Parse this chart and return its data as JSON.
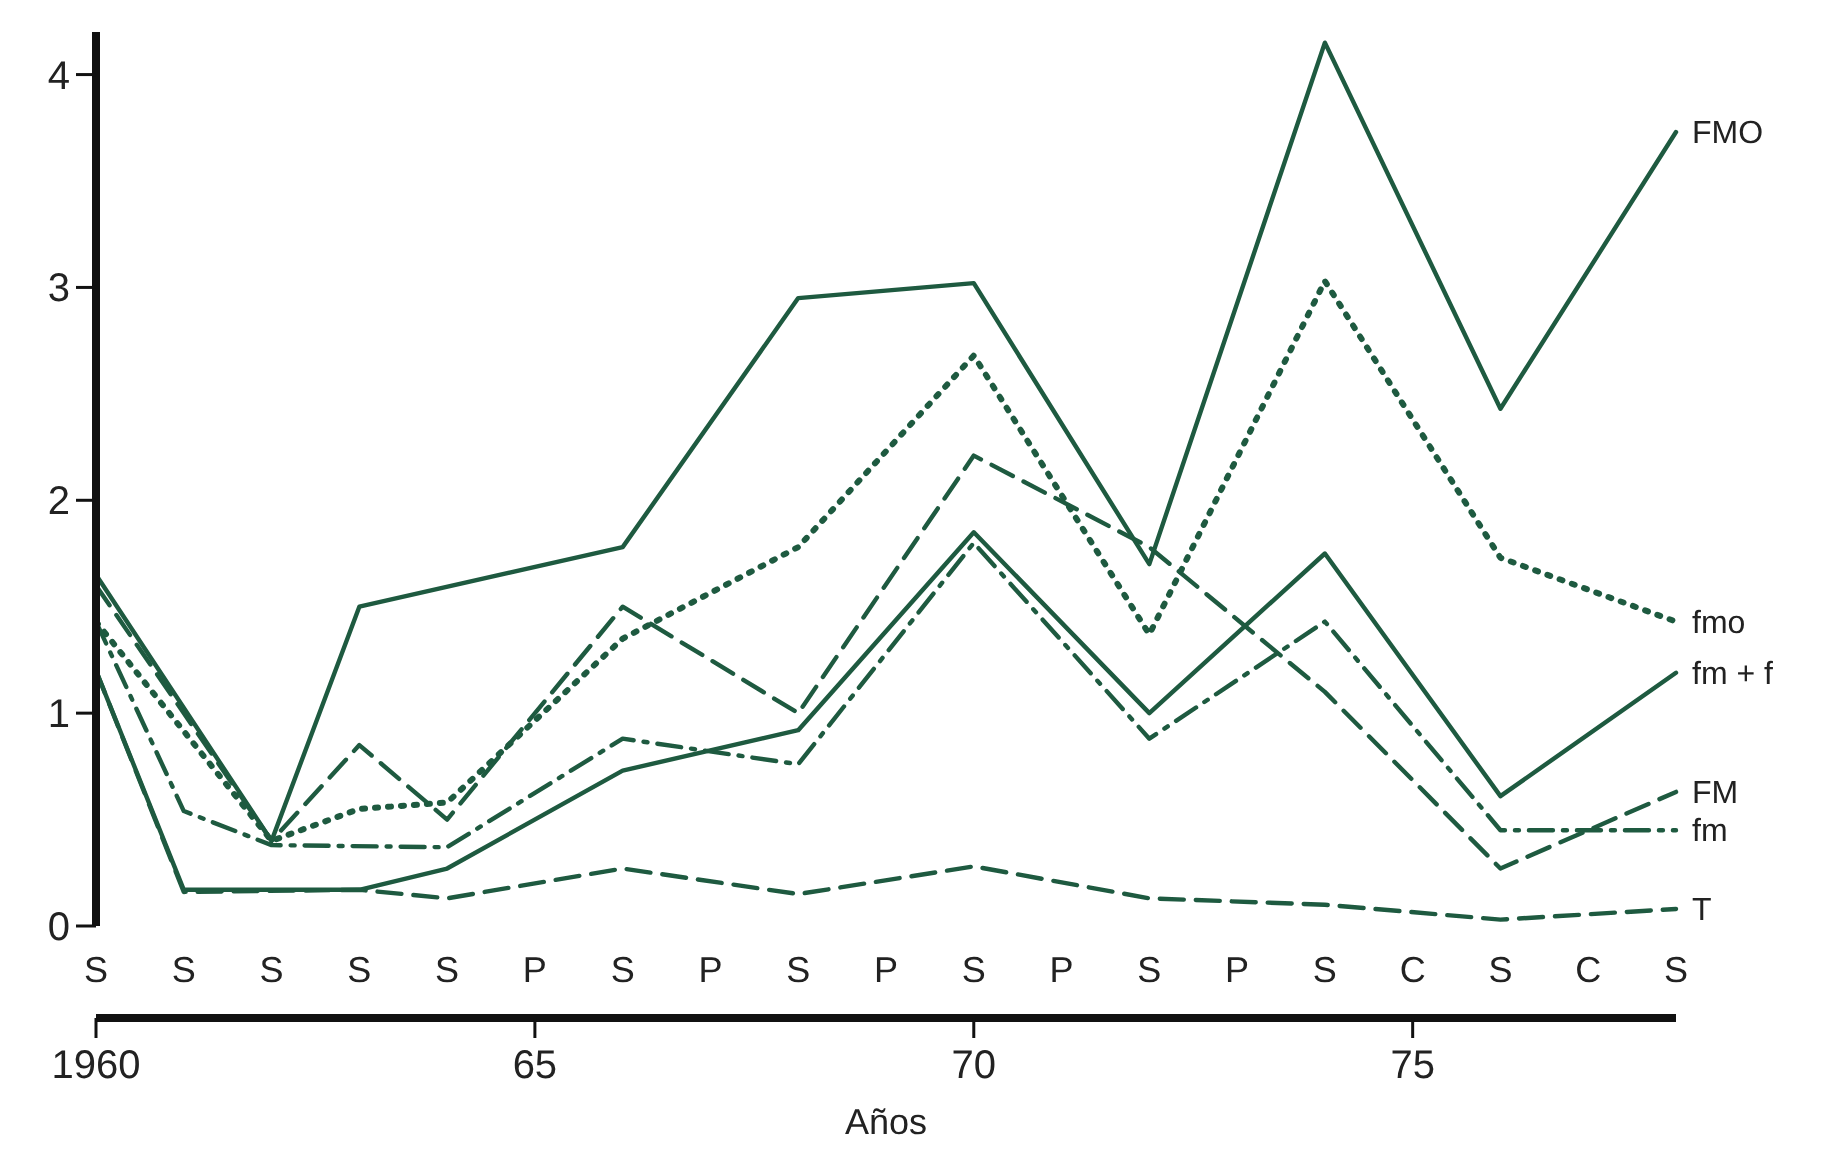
{
  "chart_data": {
    "type": "line",
    "xlabel": "Años",
    "xlim": [
      1960,
      1978
    ],
    "xticks": [
      1960,
      {
        "value": 1965,
        "label": "65"
      },
      {
        "value": 1970,
        "label": "70"
      },
      {
        "value": 1975,
        "label": "75"
      }
    ],
    "annotations": [
      "S",
      "S",
      "S",
      "S",
      "S",
      "P",
      "S",
      "P",
      "S",
      "P",
      "S",
      "P",
      "S",
      "P",
      "S",
      "C",
      "S",
      "C",
      "S"
    ],
    "ylim": [
      0,
      4.2
    ],
    "yticks": [
      0,
      1,
      2,
      3,
      4
    ],
    "grid": false,
    "marker": "none",
    "series": [
      {
        "name": "FMO",
        "color": "#1e5a40",
        "line_style": "solid",
        "x": [
          1960,
          1962,
          1963,
          1966,
          1968,
          1970,
          1972,
          1974,
          1976,
          1978
        ],
        "values": [
          1.65,
          0.4,
          1.5,
          1.78,
          2.95,
          3.02,
          1.7,
          4.15,
          2.43,
          3.73
        ]
      },
      {
        "name": "fmo",
        "color": "#1e5a40",
        "line_style": "dotted",
        "x": [
          1960,
          1962,
          1963,
          1964,
          1966,
          1968,
          1970,
          1972,
          1974,
          1976,
          1978
        ],
        "values": [
          1.43,
          0.4,
          0.55,
          0.58,
          1.35,
          1.78,
          2.68,
          1.37,
          3.03,
          1.73,
          1.43
        ]
      },
      {
        "name": "fm + f",
        "color": "#1e5a40",
        "line_style": "solid",
        "x": [
          1960,
          1961,
          1963,
          1964,
          1966,
          1968,
          1970,
          1972,
          1974,
          1976,
          1978
        ],
        "values": [
          1.2,
          0.17,
          0.17,
          0.27,
          0.73,
          0.92,
          1.85,
          1.0,
          1.75,
          0.61,
          1.19
        ]
      },
      {
        "name": "FM",
        "color": "#1e5a40",
        "line_style": "dashed",
        "x": [
          1960,
          1962,
          1963,
          1964,
          1966,
          1968,
          1970,
          1972,
          1974,
          1976,
          1978
        ],
        "values": [
          1.6,
          0.4,
          0.85,
          0.5,
          1.5,
          1.0,
          2.21,
          1.78,
          1.1,
          0.27,
          0.63
        ]
      },
      {
        "name": "fm",
        "color": "#1e5a40",
        "line_style": "dashdot",
        "x": [
          1960,
          1961,
          1962,
          1964,
          1966,
          1968,
          1970,
          1972,
          1974,
          1976,
          1978
        ],
        "values": [
          1.43,
          0.54,
          0.38,
          0.37,
          0.88,
          0.76,
          1.8,
          0.88,
          1.43,
          0.45,
          0.45
        ]
      },
      {
        "name": "T",
        "color": "#1e5a40",
        "line_style": "dashed",
        "x": [
          1960,
          1961,
          1963,
          1964,
          1966,
          1968,
          1970,
          1972,
          1974,
          1976,
          1978
        ],
        "values": [
          1.2,
          0.16,
          0.17,
          0.13,
          0.27,
          0.15,
          0.28,
          0.13,
          0.1,
          0.03,
          0.08
        ]
      }
    ]
  }
}
